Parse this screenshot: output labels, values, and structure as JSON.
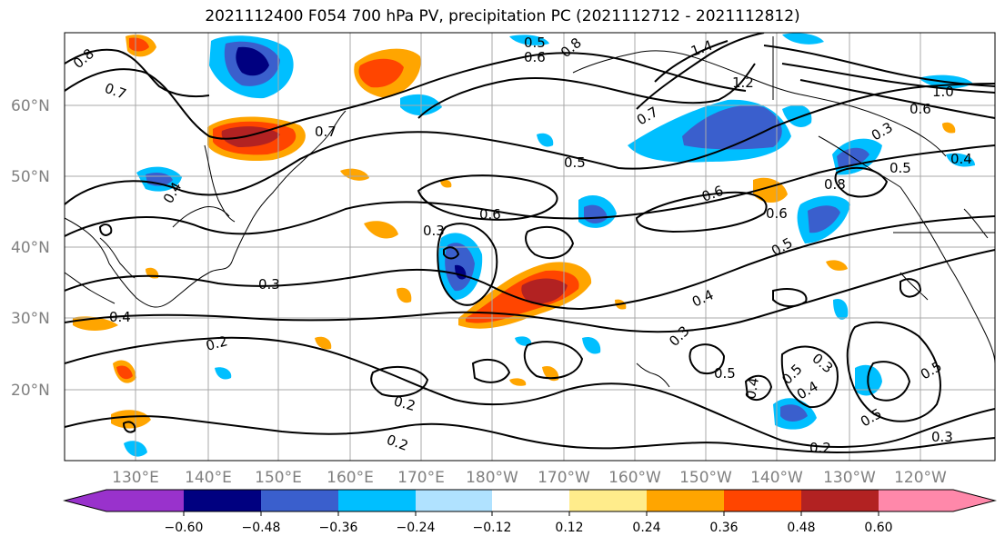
{
  "title": "2021112400 F054 700 hPa PV, precipitation PC (2021112712 - 2021112812)",
  "lat_labels": [
    "60°N",
    "50°N",
    "40°N",
    "30°N",
    "20°N"
  ],
  "lon_labels": [
    "130°E",
    "140°E",
    "150°E",
    "160°E",
    "170°E",
    "180°W",
    "170°W",
    "160°W",
    "150°W",
    "140°W",
    "130°W",
    "120°W"
  ],
  "contour_labels": [
    "0.8",
    "0.7",
    "0.5",
    "0.6",
    "0.8",
    "0.7",
    "1.4",
    "1.2",
    "1.0",
    "0.6",
    "0.3",
    "0.4",
    "0.5",
    "0.4",
    "0.7",
    "0.5",
    "0.6",
    "0.6",
    "0.8",
    "0.6",
    "0.5",
    "0.3",
    "0.3",
    "0.4",
    "0.4",
    "0.2",
    "0.3",
    "0.5",
    "0.3",
    "0.5",
    "0.4",
    "0.4",
    "0.2",
    "0.2",
    "0.5",
    "0.5",
    "0.3",
    "0.2"
  ],
  "colorbar": {
    "colors": [
      "#9932cc",
      "#000080",
      "#3a5fcd",
      "#00bfff",
      "#b0e2ff",
      "#ffffff",
      "#ffec8b",
      "#ffa500",
      "#ff4500",
      "#b22222",
      "#ff88aa"
    ],
    "tick_labels": [
      "−0.60",
      "−0.48",
      "−0.36",
      "−0.24",
      "−0.12",
      "0.12",
      "0.24",
      "0.36",
      "0.48",
      "0.60"
    ]
  }
}
